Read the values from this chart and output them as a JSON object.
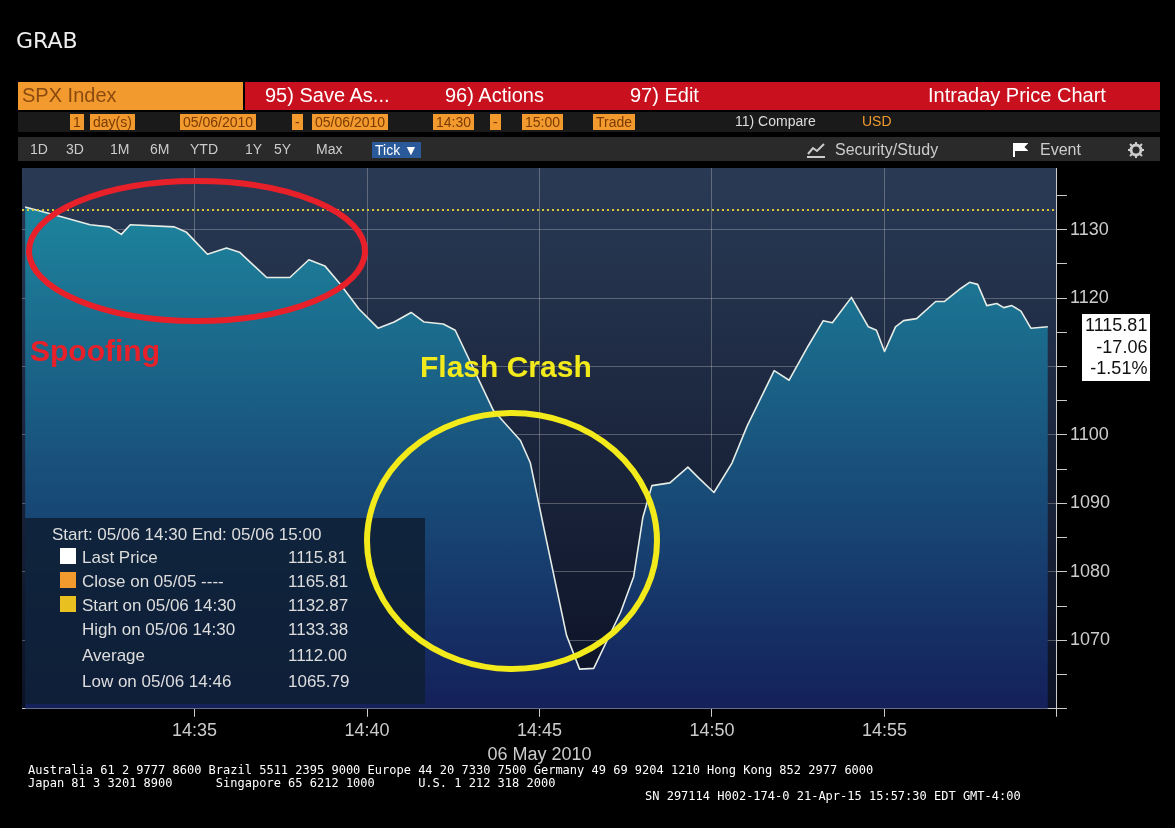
{
  "chart_data": {
    "type": "area",
    "title": "GRAB",
    "xlabel": "06 May 2010",
    "x": [
      14.5015,
      14.5199,
      14.5329,
      14.5422,
      14.548,
      14.5523,
      14.5736,
      14.5795,
      14.5896,
      14.5988,
      14.6051,
      14.6182,
      14.6294,
      14.6386,
      14.6463,
      14.6536,
      14.6628,
      14.672,
      14.6798,
      14.688,
      14.6943,
      14.7035,
      14.7093,
      14.7277,
      14.7408,
      14.7456,
      14.7524,
      14.7631,
      14.7694,
      14.7762,
      14.7892,
      14.7955,
      14.7999,
      14.8043,
      14.813,
      14.8217,
      14.827,
      14.8343,
      14.843,
      14.8503,
      14.8634,
      14.8706,
      14.8798,
      14.8871,
      14.8915,
      14.9007,
      14.9089,
      14.9128,
      14.9167,
      14.922,
      14.9259,
      14.9322,
      14.9414,
      14.9457,
      14.9535,
      14.9578,
      14.9617,
      14.9661,
      14.9709,
      14.9743,
      14.9782,
      14.9826,
      14.9874,
      14.9956
    ],
    "series": [
      {
        "color": "#1e8ca3",
        "values": [
          1133.3,
          1131.8,
          1130.7,
          1130.4,
          1129.3,
          1130.7,
          1130.4,
          1129.6,
          1126.4,
          1127.3,
          1126.7,
          1123.0,
          1123.0,
          1125.6,
          1124.7,
          1122.1,
          1118.4,
          1115.6,
          1116.5,
          1117.9,
          1116.5,
          1116.2,
          1115.3,
          1103.6,
          1099.2,
          1095.9,
          1086.0,
          1070.7,
          1065.8,
          1065.9,
          1074.1,
          1079.3,
          1087.9,
          1092.6,
          1093.0,
          1095.3,
          1093.7,
          1091.6,
          1095.9,
          1101.3,
          1109.4,
          1108.0,
          1113.0,
          1116.7,
          1116.4,
          1120.1,
          1115.8,
          1115.3,
          1112.2,
          1115.8,
          1116.7,
          1117.0,
          1119.5,
          1119.5,
          1121.4,
          1122.3,
          1122.0,
          1118.9,
          1119.2,
          1118.6,
          1118.9,
          1118.1,
          1115.6,
          1115.8
        ]
      }
    ],
    "xlim": [
      14.5,
      15.0
    ],
    "xticks": [
      {
        "value": 14.5833,
        "label": "14:35"
      },
      {
        "value": 14.6667,
        "label": "14:40"
      },
      {
        "value": 14.75,
        "label": "14:45"
      },
      {
        "value": 14.8333,
        "label": "14:50"
      },
      {
        "value": 14.9167,
        "label": "14:55"
      },
      {
        "value": 15.0,
        "label": null
      }
    ],
    "ylim": [
      1060,
      1139
    ],
    "yticks": [
      {
        "value": 1060,
        "label": null
      },
      {
        "value": 1065,
        "label": null
      },
      1070,
      {
        "value": 1075,
        "label": null
      },
      1080,
      {
        "value": 1085,
        "label": null
      },
      1090,
      {
        "value": 1095,
        "label": null
      },
      1100,
      {
        "value": 1105,
        "label": null
      },
      {
        "value": 1110,
        "label": null
      },
      {
        "value": 1115,
        "label": null
      },
      1120,
      {
        "value": 1125,
        "label": null
      },
      1130,
      {
        "value": 1135,
        "label": null
      }
    ],
    "grid": true,
    "ref_lines": [
      {
        "axis": "y",
        "value": 1132.87,
        "color": "#d8cc3a",
        "line_style": "dotted"
      }
    ],
    "annotations": [
      "SPX Index",
      "95) Save As...",
      "96) Actions",
      "97) Edit",
      "Intraday Price Chart",
      "1",
      "day(s)",
      "05/06/2010",
      "-",
      "05/06/2010",
      "14:30",
      "-",
      "15:00",
      "Trade",
      "11) Compare",
      "USD",
      "1D",
      "3D",
      "1M",
      "6M",
      "YTD",
      "1Y",
      "5Y",
      "Max",
      "Tick ▼",
      "Security/Study",
      "Event",
      "Start: 05/06 14:30 End: 05/06 15:00",
      "Last Price",
      "1115.81",
      "Close on 05/05 ----",
      "1165.81",
      "Start on 05/06 14:30",
      "1132.87",
      "High on 05/06 14:30",
      "1133.38",
      "Average",
      "1112.00",
      "Low on 05/06 14:46",
      "1065.79",
      "Australia 61 2 9777 8600 Brazil 5511 2395 9000 Europe 44 20 7330 7500 Germany 49 69 9204 1210 Hong Kong 852 2977 6000",
      "Japan 81 3 3201 8900      Singapore 65 6212 1000      U.S. 1 212 318 2000",
      "SN 297114 H002-174-0 21-Apr-15 15:57:30 EDT GMT-4:00",
      "Spoofing",
      "Flash Crash",
      "1115.81\n-17.06\n-1.51%"
    ]
  }
}
